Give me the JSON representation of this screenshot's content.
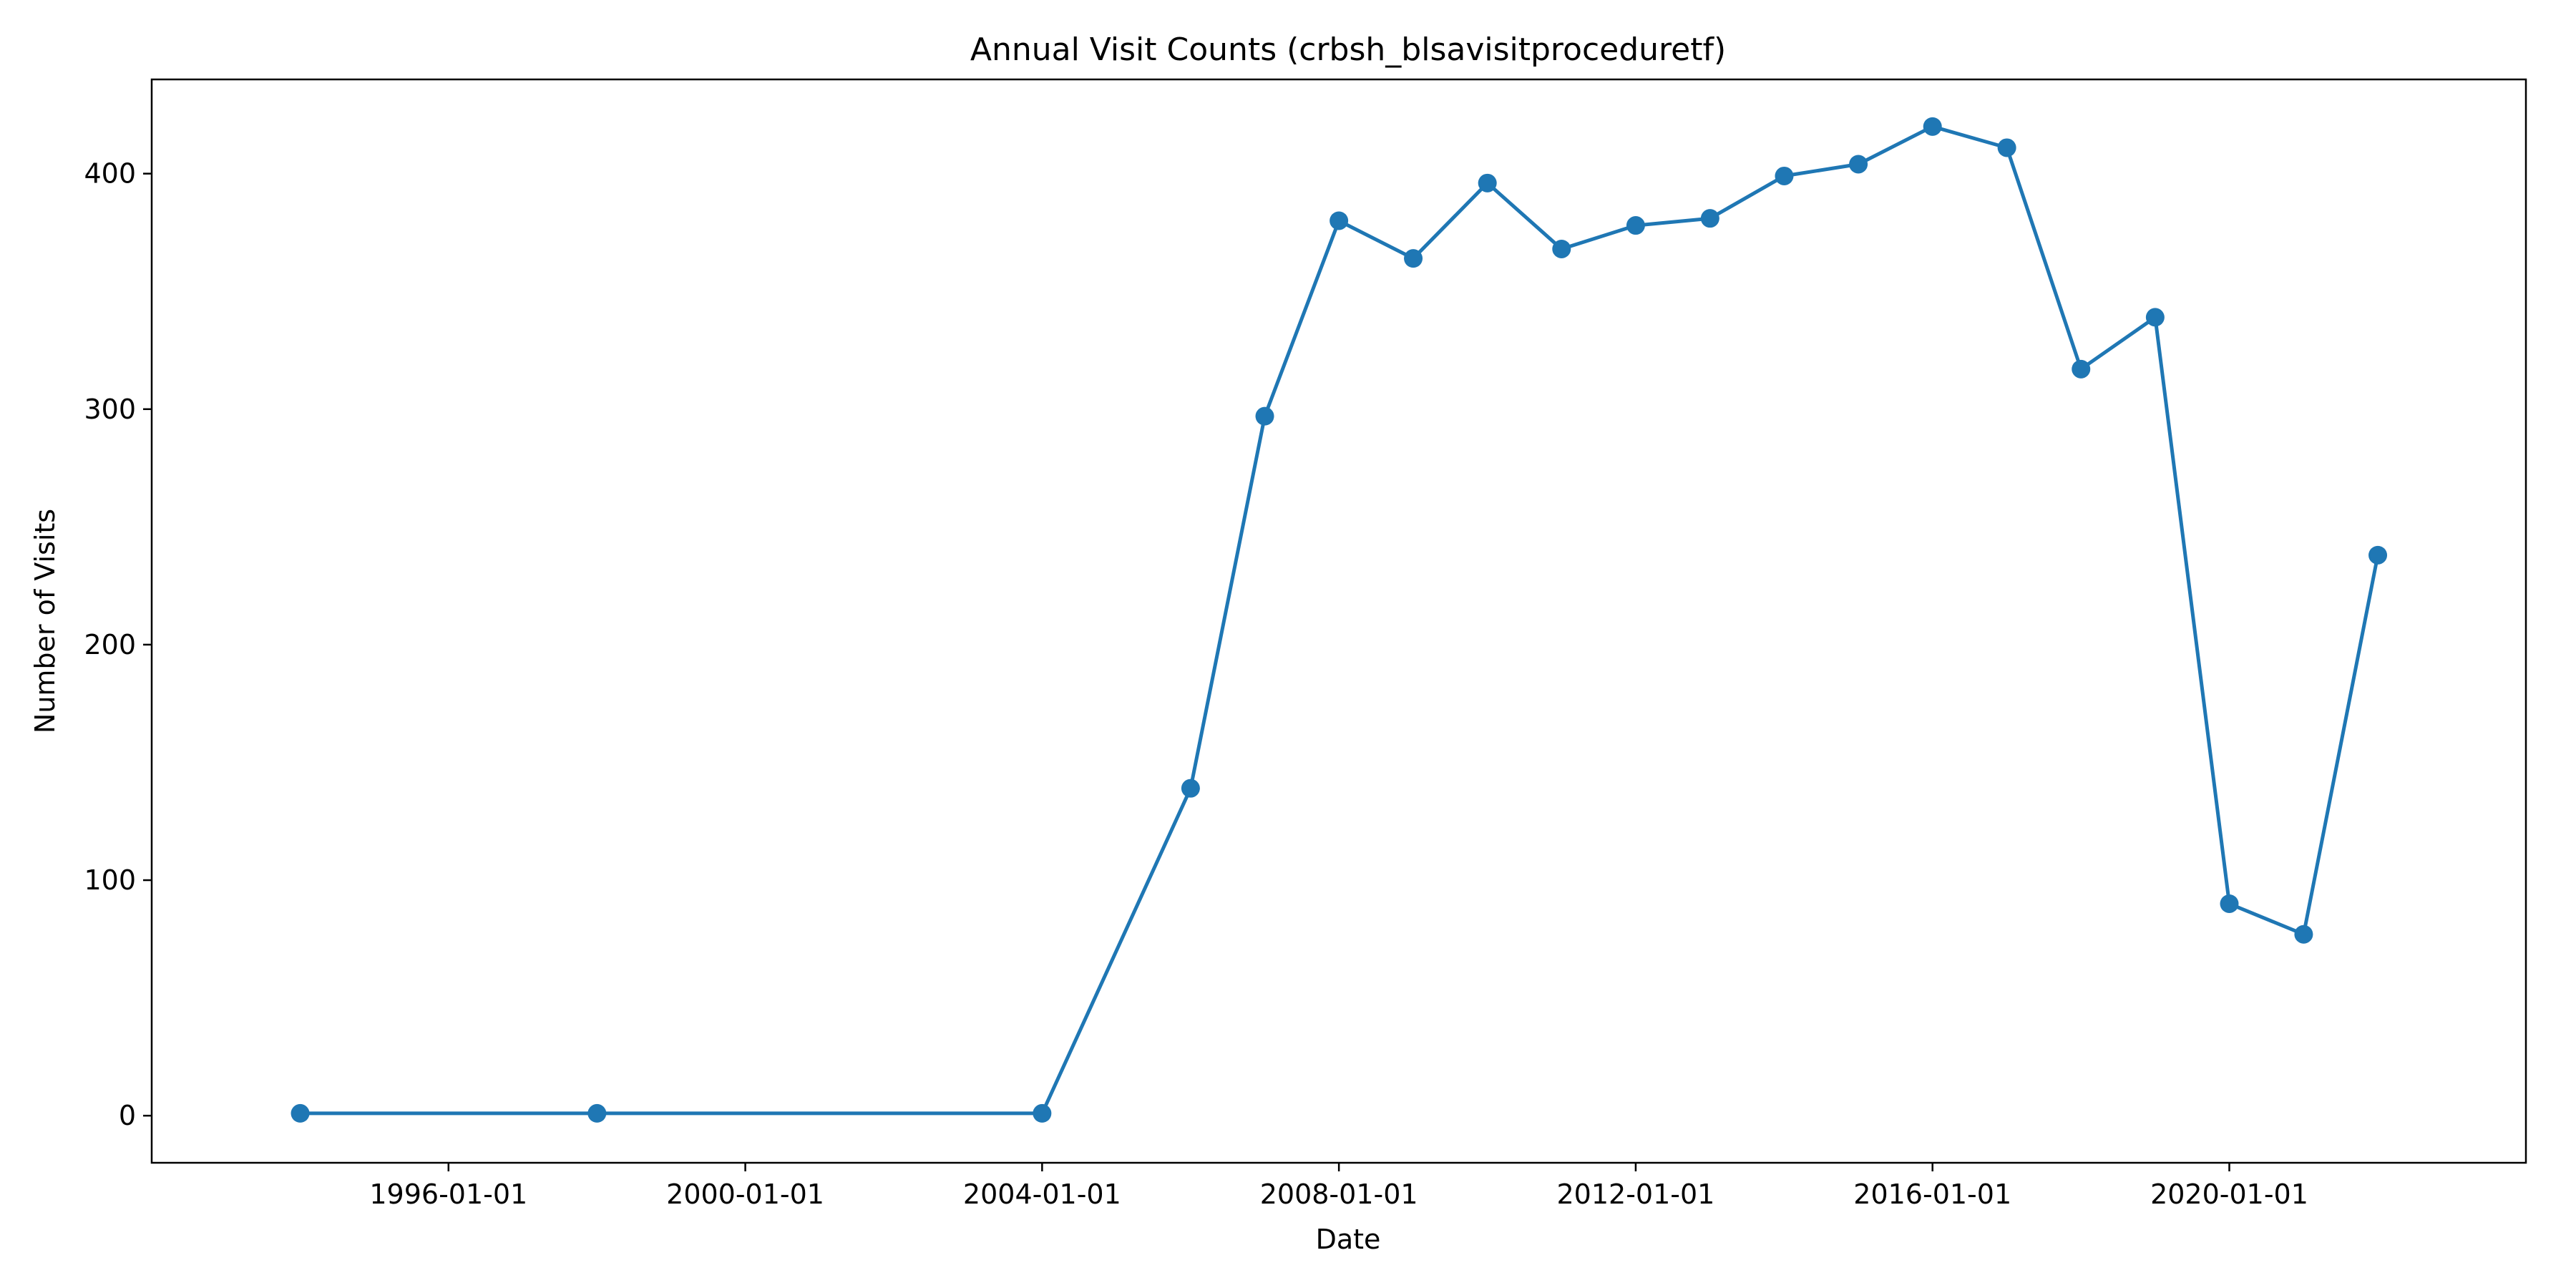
{
  "chart_data": {
    "type": "line",
    "title": "Annual Visit Counts (crbsh_blsavisitproceduretf)",
    "xlabel": "Date",
    "ylabel": "Number of Visits",
    "x_axis_type": "date",
    "xlim": [
      "1992-01-01",
      "2023-12-31"
    ],
    "ylim": [
      -20,
      440
    ],
    "x_ticks": [
      "1996-01-01",
      "2000-01-01",
      "2004-01-01",
      "2008-01-01",
      "2012-01-01",
      "2016-01-01",
      "2020-01-01"
    ],
    "y_ticks": [
      0,
      100,
      200,
      300,
      400
    ],
    "grid": false,
    "legend": "none",
    "series": [
      {
        "color": "#1f77b4",
        "marker": "circle",
        "points": [
          {
            "x": "1994-01-01",
            "y": 1
          },
          {
            "x": "1998-01-01",
            "y": 1
          },
          {
            "x": "2004-01-01",
            "y": 1
          },
          {
            "x": "2006-01-01",
            "y": 139
          },
          {
            "x": "2007-01-01",
            "y": 297
          },
          {
            "x": "2008-01-01",
            "y": 380
          },
          {
            "x": "2009-01-01",
            "y": 364
          },
          {
            "x": "2010-01-01",
            "y": 396
          },
          {
            "x": "2011-01-01",
            "y": 368
          },
          {
            "x": "2012-01-01",
            "y": 378
          },
          {
            "x": "2013-01-01",
            "y": 381
          },
          {
            "x": "2014-01-01",
            "y": 399
          },
          {
            "x": "2015-01-01",
            "y": 404
          },
          {
            "x": "2016-01-01",
            "y": 420
          },
          {
            "x": "2017-01-01",
            "y": 411
          },
          {
            "x": "2018-01-01",
            "y": 317
          },
          {
            "x": "2019-01-01",
            "y": 339
          },
          {
            "x": "2020-01-01",
            "y": 90
          },
          {
            "x": "2021-01-01",
            "y": 77
          },
          {
            "x": "2022-01-01",
            "y": 238
          }
        ]
      }
    ]
  }
}
